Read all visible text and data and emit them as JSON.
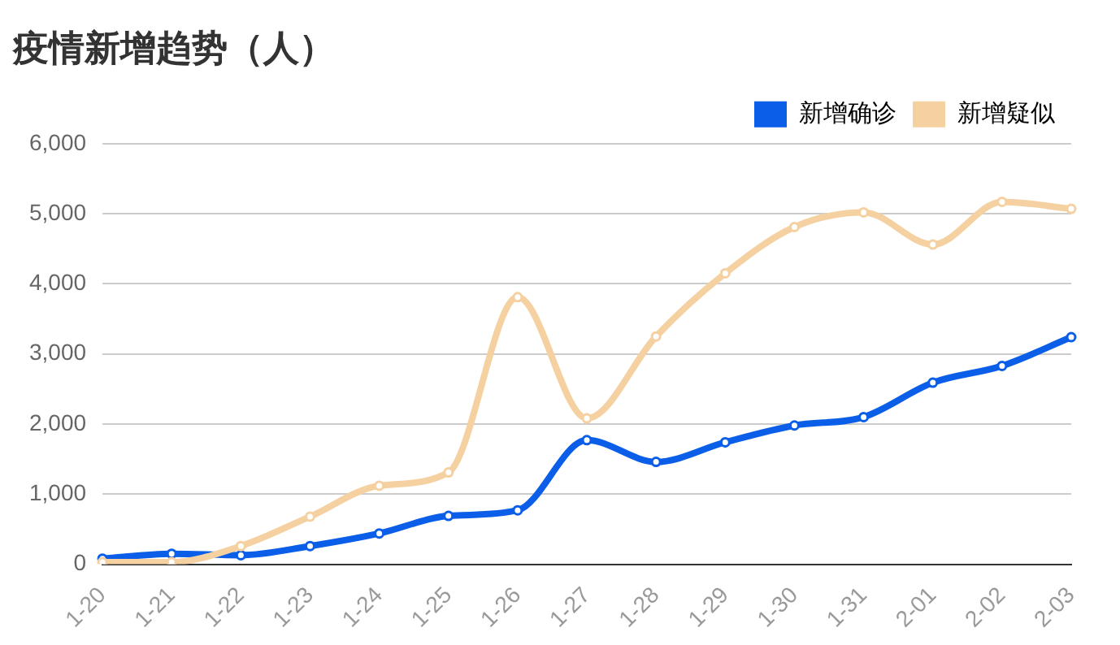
{
  "chart_data": {
    "type": "line",
    "title": "疫情新增趋势（人）",
    "categories": [
      "1-20",
      "1-21",
      "1-22",
      "1-23",
      "1-24",
      "1-25",
      "1-26",
      "1-27",
      "1-28",
      "1-29",
      "1-30",
      "1-31",
      "2-01",
      "2-02",
      "2-03"
    ],
    "series": [
      {
        "name": "新增确诊",
        "color": "#0b5ee8",
        "values": [
          80,
          150,
          130,
          260,
          440,
          690,
          770,
          1770,
          1460,
          1740,
          1980,
          2100,
          2590,
          2830,
          3240
        ]
      },
      {
        "name": "新增疑似",
        "color": "#f5d1a1",
        "values": [
          30,
          30,
          260,
          680,
          1120,
          1310,
          3810,
          2080,
          3250,
          4150,
          4810,
          5020,
          4560,
          5170,
          5070
        ]
      }
    ],
    "ylim": [
      0,
      6000
    ],
    "yticks": [
      0,
      {
        "value": 1000,
        "label": "1,000"
      },
      {
        "value": 2000,
        "label": "2,000"
      },
      {
        "value": 3000,
        "label": "3,000"
      },
      {
        "value": 4000,
        "label": "4,000"
      },
      {
        "value": 5000,
        "label": "5,000"
      },
      {
        "value": 6000,
        "label": "6,000"
      }
    ],
    "grid": "y",
    "legend": "top right",
    "marker": "circle",
    "line_style": "solid"
  }
}
